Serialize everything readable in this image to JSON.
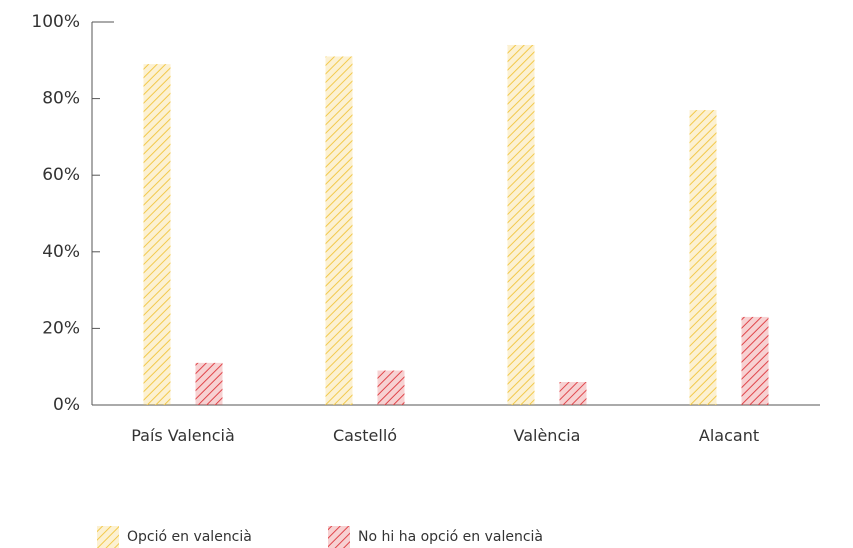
{
  "chart_data": {
    "type": "bar",
    "categories": [
      "País Valencià",
      "Castelló",
      "València",
      "Alacant"
    ],
    "series": [
      {
        "name": "Opció en valencià",
        "color": "#f2c94c",
        "values": [
          89,
          91,
          94,
          77
        ]
      },
      {
        "name": "No hi ha opció en valencià",
        "color": "#e0474c",
        "values": [
          11,
          9,
          6,
          23
        ]
      }
    ],
    "ylim": [
      0,
      100
    ],
    "yticks": [
      {
        "value": 0,
        "label": "0%"
      },
      {
        "value": 20,
        "label": "20%"
      },
      {
        "value": 40,
        "label": "40%"
      },
      {
        "value": 60,
        "label": "60%"
      },
      {
        "value": 80,
        "label": "80%"
      },
      {
        "value": 100,
        "label": "100%"
      }
    ],
    "legend": "bottom-left"
  }
}
